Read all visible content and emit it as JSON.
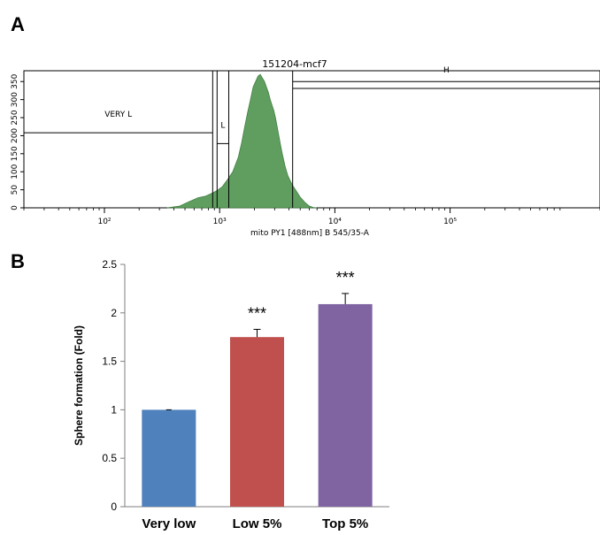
{
  "chart_data": [
    {
      "panel": "A",
      "type": "area",
      "title": "151204-mcf7",
      "xlabel": "mito PY1 [488nm] B 545/35-A",
      "xscale": "log",
      "xlim": [
        20,
        2000000
      ],
      "x_ticks": [
        {
          "value": 100,
          "label": "10²"
        },
        {
          "value": 1000,
          "label": "10³"
        },
        {
          "value": 10000,
          "label": "10⁴"
        },
        {
          "value": 100000,
          "label": "10⁵"
        }
      ],
      "ylim": [
        0,
        380
      ],
      "y_ticks": [
        0,
        50,
        100,
        150,
        200,
        250,
        300,
        350
      ],
      "fill_color": "#5f9e5f",
      "series": [
        {
          "x": [
            350,
            450,
            550,
            650,
            750,
            850,
            950,
            1050,
            1150,
            1300,
            1450,
            1550,
            1650,
            1750,
            1850,
            1950,
            2050,
            2150,
            2250,
            2350,
            2450,
            2550,
            2650,
            2750,
            2850,
            2950,
            3050,
            3200,
            3350,
            3500,
            3700,
            3900,
            4100,
            4300,
            4600,
            5000,
            5500,
            6000,
            6500,
            7000
          ],
          "y": [
            0,
            5,
            18,
            28,
            32,
            40,
            48,
            58,
            75,
            100,
            140,
            180,
            225,
            265,
            300,
            335,
            350,
            365,
            370,
            360,
            350,
            335,
            320,
            300,
            285,
            270,
            250,
            215,
            180,
            150,
            115,
            90,
            75,
            62,
            48,
            30,
            15,
            5,
            1,
            0
          ]
        }
      ],
      "gates": [
        {
          "label": "VERY L",
          "x_min": 20,
          "x_max": 870,
          "y_level": 208
        },
        {
          "label": "L",
          "x_min": 950,
          "x_max": 1200,
          "y_level": 178
        },
        {
          "label": "H",
          "x_min": 4300,
          "x_max": 2000000,
          "y_level": 331
        }
      ]
    },
    {
      "panel": "B",
      "type": "bar",
      "categories": [
        "Very low",
        "Low 5%",
        "Top 5%"
      ],
      "values": [
        1.0,
        1.75,
        2.09
      ],
      "errors": [
        0.0,
        0.08,
        0.11
      ],
      "significance": [
        "",
        "***",
        "***"
      ],
      "colors": [
        "#4f81bd",
        "#c0504d",
        "#8064a2"
      ],
      "ylabel": "Sphere formation (Fold)",
      "ylim": [
        0,
        2.5
      ],
      "y_ticks": [
        "0",
        "0.5",
        "1",
        "1.5",
        "2",
        "2.5"
      ]
    }
  ]
}
